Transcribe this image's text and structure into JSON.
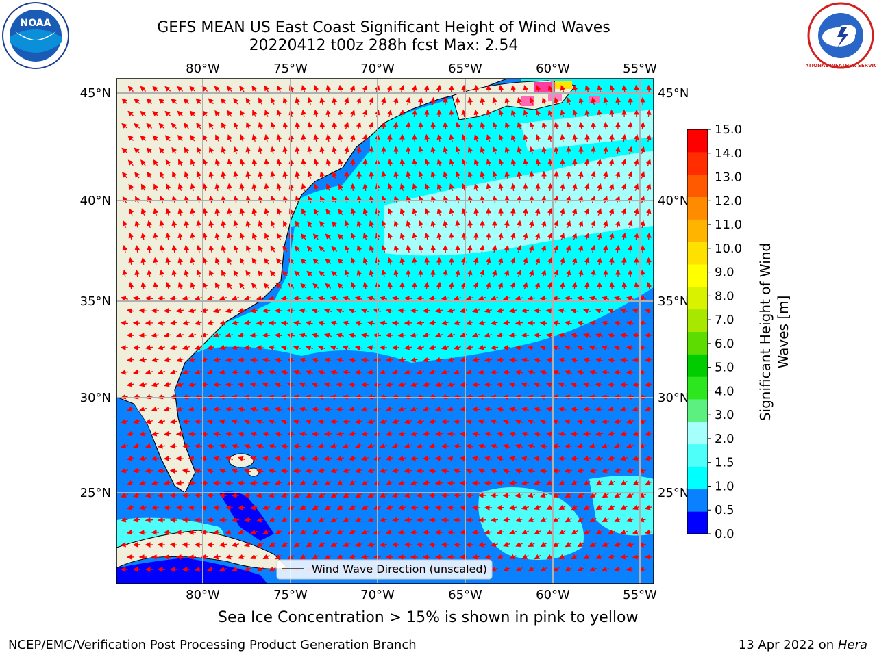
{
  "title": {
    "line1": "GEFS MEAN US East Coast Significant Height of Wind Waves",
    "line2": "20220412 t00z 288h fcst   Max: 2.54"
  },
  "map": {
    "lon_ticks": [
      "80°W",
      "75°W",
      "70°W",
      "65°W",
      "60°W",
      "55°W"
    ],
    "lat_ticks": [
      "45°N",
      "40°N",
      "35°N",
      "30°N",
      "25°N"
    ],
    "legend_label": "Wind Wave Direction (unscaled)",
    "arrow_color": "#ff0000",
    "land_color": "#efefdc"
  },
  "colorbar": {
    "label_line1": "Significant Height of Wind",
    "label_line2": "Waves [m]",
    "ticks": [
      "0.0",
      "0.5",
      "1.0",
      "1.5",
      "2.0",
      "3.0",
      "4.0",
      "5.0",
      "6.0",
      "7.0",
      "8.0",
      "9.0",
      "10.0",
      "11.0",
      "12.0",
      "13.0",
      "14.0",
      "15.0"
    ],
    "colors": [
      "#0000ff",
      "#0a82ff",
      "#00ffff",
      "#4dfff8",
      "#a5fffb",
      "#5cf080",
      "#2ee61e",
      "#00cc00",
      "#5cdc00",
      "#a8e800",
      "#d9f200",
      "#ffff00",
      "#ffe100",
      "#ffb400",
      "#ff8c00",
      "#ff5a00",
      "#ff2d00",
      "#ff0000"
    ]
  },
  "logos": {
    "noaa": "NOAA",
    "nws": "NATIONAL WEATHER SERVICE"
  },
  "footer": {
    "note": "Sea Ice Concentration > 15% is shown in pink to yellow",
    "branch": "NCEP/EMC/Verification Post Processing Product Generation Branch",
    "date": "13 Apr 2022 on",
    "machine": "Hera"
  }
}
